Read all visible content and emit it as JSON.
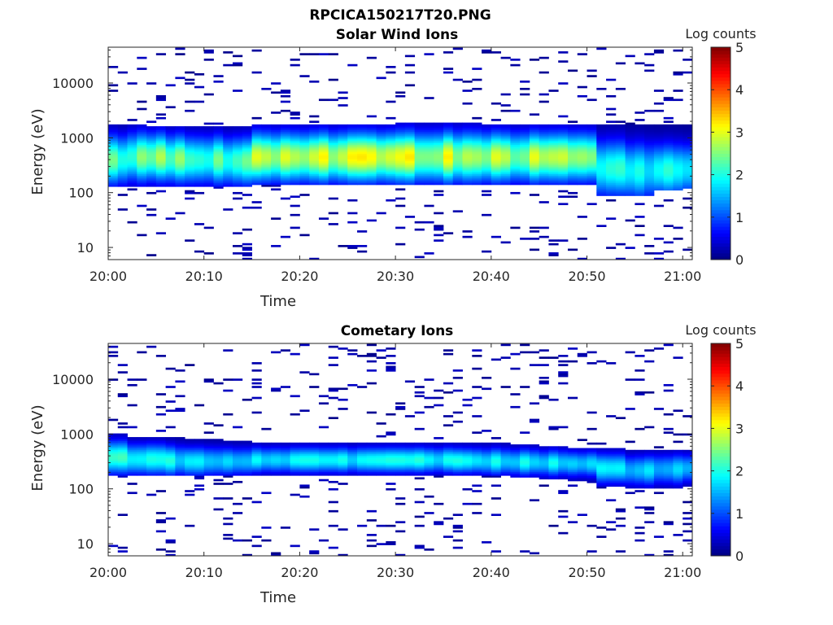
{
  "figure": {
    "title": "RPCICA150217T20.PNG"
  },
  "chart_data": [
    {
      "type": "heatmap",
      "title": "Solar Wind Ions",
      "xlabel": "Time",
      "ylabel": "Energy (eV)",
      "x_tick_labels": [
        "20:00",
        "20:10",
        "20:20",
        "20:30",
        "20:40",
        "20:50",
        "21:00"
      ],
      "x_ticks_min": [
        0,
        10,
        20,
        30,
        40,
        50,
        60
      ],
      "xlim_min": [
        0,
        61
      ],
      "y_scale": "log",
      "y_tick_labels": [
        "10",
        "100",
        "1000",
        "10000"
      ],
      "y_ticks": [
        10,
        100,
        1000,
        10000
      ],
      "ylim": [
        6,
        45000
      ],
      "colorbar": {
        "label": "Log counts",
        "range": [
          0,
          5
        ],
        "ticks": [
          "0",
          "1",
          "2",
          "3",
          "4",
          "5"
        ],
        "colormap": "jet"
      },
      "time_bins_min": [
        0,
        2,
        4,
        6,
        8,
        10,
        12,
        15,
        18,
        21,
        24,
        27,
        30,
        33,
        36,
        39,
        42,
        45,
        48,
        51,
        54,
        57,
        60
      ],
      "band_low_eV": [
        130,
        130,
        130,
        130,
        130,
        130,
        130,
        140,
        140,
        140,
        140,
        140,
        140,
        140,
        140,
        140,
        140,
        140,
        140,
        90,
        90,
        110,
        120
      ],
      "band_high_eV": [
        1700,
        1700,
        1600,
        1600,
        1600,
        1600,
        1600,
        1800,
        1800,
        1800,
        1800,
        1800,
        1900,
        1900,
        1900,
        1800,
        1800,
        1800,
        1800,
        1800,
        1800,
        1800,
        1800
      ],
      "peak_eV": [
        400,
        450,
        450,
        420,
        400,
        400,
        380,
        450,
        450,
        450,
        450,
        450,
        450,
        450,
        450,
        450,
        450,
        450,
        450,
        280,
        250,
        260,
        270
      ],
      "peak_log_counts": [
        2.3,
        2.3,
        2.4,
        2.4,
        2.3,
        2.2,
        2.2,
        2.8,
        2.8,
        2.8,
        2.8,
        2.8,
        2.8,
        2.8,
        2.8,
        2.7,
        2.6,
        2.5,
        2.5,
        1.9,
        1.9,
        1.8,
        1.8
      ]
    },
    {
      "type": "heatmap",
      "title": "Cometary Ions",
      "xlabel": "Time",
      "ylabel": "Energy (eV)",
      "x_tick_labels": [
        "20:00",
        "20:10",
        "20:20",
        "20:30",
        "20:40",
        "20:50",
        "21:00"
      ],
      "x_ticks_min": [
        0,
        10,
        20,
        30,
        40,
        50,
        60
      ],
      "xlim_min": [
        0,
        61
      ],
      "y_scale": "log",
      "y_tick_labels": [
        "10",
        "100",
        "1000",
        "10000"
      ],
      "y_ticks": [
        10,
        100,
        1000,
        10000
      ],
      "ylim": [
        6,
        45000
      ],
      "colorbar": {
        "label": "Log counts",
        "range": [
          0,
          5
        ],
        "ticks": [
          "0",
          "1",
          "2",
          "3",
          "4",
          "5"
        ],
        "colormap": "jet"
      },
      "time_bins_min": [
        0,
        2,
        4,
        6,
        8,
        10,
        12,
        15,
        18,
        21,
        24,
        27,
        30,
        33,
        36,
        39,
        42,
        45,
        48,
        51,
        54,
        57,
        60
      ],
      "band_low_eV": [
        170,
        170,
        170,
        170,
        170,
        170,
        170,
        180,
        180,
        180,
        180,
        180,
        180,
        180,
        180,
        170,
        160,
        150,
        140,
        110,
        100,
        100,
        110
      ],
      "band_high_eV": [
        1000,
        900,
        900,
        850,
        800,
        800,
        750,
        700,
        700,
        700,
        700,
        700,
        700,
        700,
        700,
        700,
        650,
        600,
        550,
        550,
        500,
        500,
        500
      ],
      "peak_eV": [
        380,
        350,
        350,
        330,
        320,
        320,
        320,
        340,
        340,
        340,
        340,
        340,
        340,
        340,
        330,
        320,
        310,
        300,
        290,
        240,
        220,
        230,
        240
      ],
      "peak_log_counts": [
        1.9,
        1.9,
        1.8,
        1.8,
        1.8,
        1.7,
        1.7,
        1.8,
        1.8,
        1.8,
        1.8,
        1.8,
        1.8,
        1.8,
        1.8,
        1.7,
        1.7,
        1.7,
        1.6,
        1.6,
        1.6,
        1.5,
        1.5
      ]
    }
  ]
}
